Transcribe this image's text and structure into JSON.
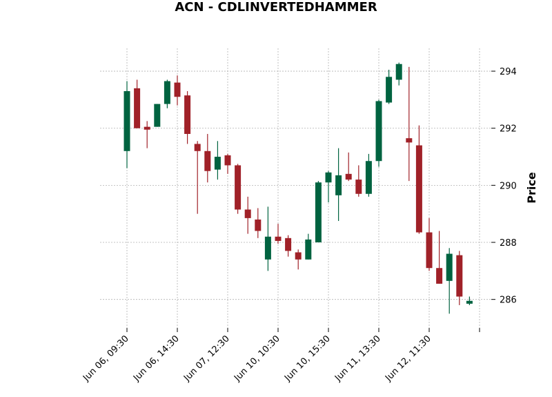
{
  "chart_data": {
    "type": "candlestick",
    "title": "ACN - CDLINVERTEDHAMMER",
    "xlabel": "",
    "ylabel": "Price",
    "ylim": [
      285.0,
      294.8
    ],
    "yticks": [
      286,
      288,
      290,
      292,
      294
    ],
    "grid": true,
    "colors": {
      "up": "#006340",
      "down": "#a02128"
    },
    "xtick_labels": [
      {
        "index": 0,
        "label": "Jun 06, 09:30"
      },
      {
        "index": 5,
        "label": "Jun 06, 14:30"
      },
      {
        "index": 10,
        "label": "Jun 07, 12:30"
      },
      {
        "index": 15,
        "label": "Jun 10, 10:30"
      },
      {
        "index": 20,
        "label": "Jun 10, 15:30"
      },
      {
        "index": 25,
        "label": "Jun 11, 13:30"
      },
      {
        "index": 30,
        "label": "Jun 12, 11:30"
      },
      {
        "index": 35,
        "label": ""
      }
    ],
    "candles": [
      {
        "open": 291.2,
        "high": 293.65,
        "low": 290.6,
        "close": 293.3
      },
      {
        "open": 293.4,
        "high": 293.7,
        "low": 292.0,
        "close": 292.0
      },
      {
        "open": 292.05,
        "high": 292.25,
        "low": 291.3,
        "close": 291.95
      },
      {
        "open": 292.05,
        "high": 292.85,
        "low": 292.05,
        "close": 292.85
      },
      {
        "open": 292.85,
        "high": 293.7,
        "low": 292.7,
        "close": 293.65
      },
      {
        "open": 293.6,
        "high": 293.85,
        "low": 292.8,
        "close": 293.1
      },
      {
        "open": 293.15,
        "high": 293.3,
        "low": 291.45,
        "close": 291.8
      },
      {
        "open": 291.45,
        "high": 291.55,
        "low": 289.0,
        "close": 291.2
      },
      {
        "open": 291.2,
        "high": 291.8,
        "low": 290.1,
        "close": 290.5
      },
      {
        "open": 290.55,
        "high": 291.55,
        "low": 290.2,
        "close": 291.0
      },
      {
        "open": 291.05,
        "high": 291.1,
        "low": 290.4,
        "close": 290.7
      },
      {
        "open": 290.7,
        "high": 290.75,
        "low": 289.0,
        "close": 289.15
      },
      {
        "open": 289.15,
        "high": 289.6,
        "low": 288.3,
        "close": 288.85
      },
      {
        "open": 288.8,
        "high": 289.2,
        "low": 288.15,
        "close": 288.4
      },
      {
        "open": 287.4,
        "high": 289.25,
        "low": 287.0,
        "close": 288.2
      },
      {
        "open": 288.2,
        "high": 288.65,
        "low": 287.95,
        "close": 288.05
      },
      {
        "open": 288.15,
        "high": 288.25,
        "low": 287.5,
        "close": 287.7
      },
      {
        "open": 287.65,
        "high": 287.75,
        "low": 287.05,
        "close": 287.4
      },
      {
        "open": 287.4,
        "high": 288.3,
        "low": 287.4,
        "close": 288.1
      },
      {
        "open": 288.0,
        "high": 290.15,
        "low": 288.0,
        "close": 290.1
      },
      {
        "open": 290.1,
        "high": 290.5,
        "low": 289.4,
        "close": 290.45
      },
      {
        "open": 289.65,
        "high": 291.3,
        "low": 288.75,
        "close": 290.35
      },
      {
        "open": 290.4,
        "high": 291.15,
        "low": 290.15,
        "close": 290.2
      },
      {
        "open": 290.2,
        "high": 290.7,
        "low": 289.6,
        "close": 289.7
      },
      {
        "open": 289.7,
        "high": 291.1,
        "low": 289.6,
        "close": 290.85
      },
      {
        "open": 290.85,
        "high": 293.0,
        "low": 290.65,
        "close": 292.95
      },
      {
        "open": 292.9,
        "high": 294.05,
        "low": 292.85,
        "close": 293.8
      },
      {
        "open": 293.7,
        "high": 294.3,
        "low": 293.5,
        "close": 294.25
      },
      {
        "open": 291.65,
        "high": 294.15,
        "low": 290.15,
        "close": 291.5
      },
      {
        "open": 291.4,
        "high": 292.1,
        "low": 288.3,
        "close": 288.35
      },
      {
        "open": 288.35,
        "high": 288.85,
        "low": 287.0,
        "close": 287.1
      },
      {
        "open": 287.1,
        "high": 288.4,
        "low": 286.55,
        "close": 286.55
      },
      {
        "open": 286.65,
        "high": 287.8,
        "low": 285.5,
        "close": 287.6
      },
      {
        "open": 287.55,
        "high": 287.7,
        "low": 285.8,
        "close": 286.1
      },
      {
        "open": 285.85,
        "high": 286.1,
        "low": 285.8,
        "close": 285.95
      }
    ]
  }
}
